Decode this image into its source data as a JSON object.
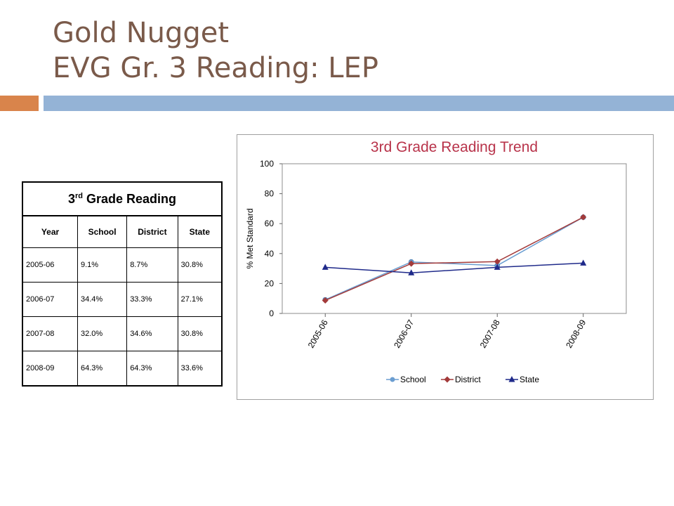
{
  "slide": {
    "title_line1": "Gold Nugget",
    "title_line2": "EVG Gr. 3 Reading:  LEP",
    "colors": {
      "title": "#7a5a4a",
      "orange_bar": "#d9844b",
      "blue_bar": "#94b3d6"
    }
  },
  "table": {
    "caption_prefix": "3",
    "caption_sup": "rd",
    "caption_suffix": " Grade Reading",
    "headers": [
      "Year",
      "School",
      "District",
      "State"
    ],
    "rows": [
      [
        "2005-06",
        "9.1%",
        "8.7%",
        "30.8%"
      ],
      [
        "2006-07",
        "34.4%",
        "33.3%",
        "27.1%"
      ],
      [
        "2007-08",
        "32.0%",
        "34.6%",
        "30.8%"
      ],
      [
        "2008-09",
        "64.3%",
        "64.3%",
        "33.6%"
      ]
    ]
  },
  "chart_data": {
    "type": "line",
    "title": "3rd Grade Reading Trend",
    "xlabel": "",
    "ylabel": "% Met Standard",
    "categories": [
      "2005-06",
      "2006-07",
      "2007-08",
      "2008-09"
    ],
    "ylim": [
      0,
      100
    ],
    "yticks": [
      0,
      20,
      40,
      60,
      80,
      100
    ],
    "legend_position": "bottom",
    "grid": false,
    "series": [
      {
        "name": "School",
        "values": [
          9.1,
          34.4,
          32.0,
          64.3
        ],
        "color": "#6b9ed1",
        "marker": "circle"
      },
      {
        "name": "District",
        "values": [
          8.7,
          33.3,
          34.6,
          64.3
        ],
        "color": "#a33a3a",
        "marker": "diamond"
      },
      {
        "name": "State",
        "values": [
          30.8,
          27.1,
          30.8,
          33.6
        ],
        "color": "#1f2a8a",
        "marker": "triangle"
      }
    ],
    "title_color": "#b8334a"
  }
}
